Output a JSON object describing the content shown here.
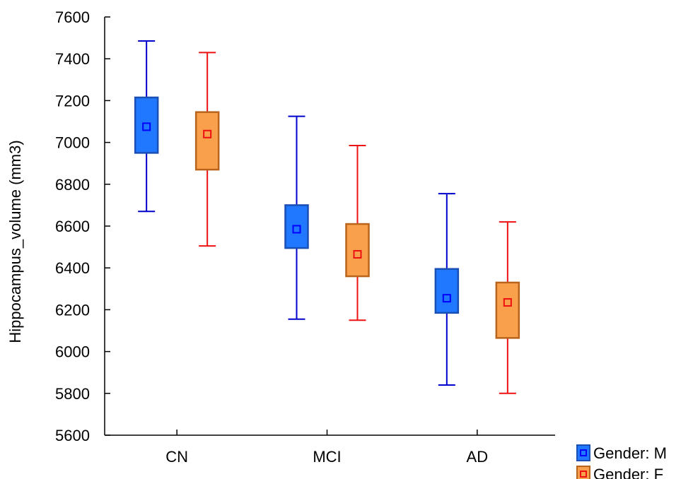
{
  "chart_data": {
    "type": "box",
    "title": "",
    "xlabel": "",
    "ylabel": "Hippocampus_volume (mm3)",
    "ylim": [
      5600,
      7600
    ],
    "yticks": [
      "5600",
      "5800",
      "6000",
      "6200",
      "6400",
      "6600",
      "6800",
      "7000",
      "7200",
      "7400",
      "7600"
    ],
    "categories": [
      "CN",
      "MCI",
      "AD"
    ],
    "grid": false,
    "legend_position": "bottom-right",
    "series": [
      {
        "name": "Gender: M",
        "box_color": "#1f78ff",
        "edge_color": "#1a4fb4",
        "whisker_color": "#0000cc",
        "marker_color": "#0000ff",
        "boxes": [
          {
            "category": "CN",
            "whisker_low": 6670,
            "q1": 6950,
            "mean": 7075,
            "q3": 7215,
            "whisker_high": 7485
          },
          {
            "category": "MCI",
            "whisker_low": 6155,
            "q1": 6495,
            "mean": 6585,
            "q3": 6700,
            "whisker_high": 7125
          },
          {
            "category": "AD",
            "whisker_low": 5840,
            "q1": 6185,
            "mean": 6255,
            "q3": 6395,
            "whisker_high": 6755
          }
        ]
      },
      {
        "name": "Gender: F",
        "box_color": "#f9a04c",
        "edge_color": "#b8641c",
        "whisker_color": "#ee1111",
        "marker_color": "#ee1111",
        "boxes": [
          {
            "category": "CN",
            "whisker_low": 6505,
            "q1": 6870,
            "mean": 7040,
            "q3": 7145,
            "whisker_high": 7430
          },
          {
            "category": "MCI",
            "whisker_low": 6150,
            "q1": 6360,
            "mean": 6465,
            "q3": 6610,
            "whisker_high": 6985
          },
          {
            "category": "AD",
            "whisker_low": 5800,
            "q1": 6065,
            "mean": 6235,
            "q3": 6330,
            "whisker_high": 6620
          }
        ]
      }
    ]
  }
}
